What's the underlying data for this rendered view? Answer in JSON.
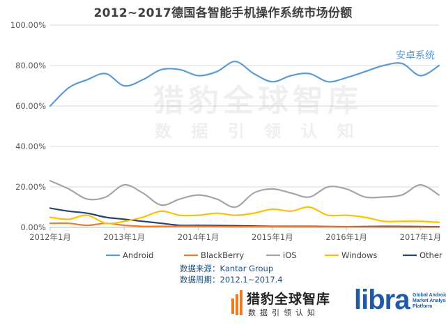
{
  "title": "2012~2017德国各智能手机操作系统市场份额",
  "annotation": "安卓系统",
  "watermark": {
    "main": "猎豹全球智库",
    "sub": "数 据 引 领 认 知"
  },
  "source_lines": [
    "数据来源：Kantar Group",
    "数据周期：2012.1~2017.4"
  ],
  "footer": {
    "brand": "猎豹全球智库",
    "brand_sub": "数据引领认知",
    "libra": "libra",
    "libra_tag": "Global Android Market Analysis Platform"
  },
  "chart_data": {
    "type": "line",
    "title": "2012~2017德国各智能手机操作系统市场份额",
    "x_tick_labels": [
      "2012年1月",
      "2013年1月",
      "2014年1月",
      "2015年1月",
      "2016年1月",
      "2017年1月"
    ],
    "y_tick_labels": [
      "0.00%",
      "20.00%",
      "40.00%",
      "60.00%",
      "80.00%",
      "100.00%"
    ],
    "ylim": [
      0,
      100
    ],
    "x_range_months": [
      "2012-01",
      "2017-04"
    ],
    "grid": "horizontal",
    "legend_position": "bottom",
    "series": [
      {
        "name": "Android",
        "color": "#5b9bd5",
        "points": [
          [
            "2012-01",
            60
          ],
          [
            "2012-04",
            69
          ],
          [
            "2012-07",
            73
          ],
          [
            "2012-10",
            76
          ],
          [
            "2013-01",
            70
          ],
          [
            "2013-04",
            73
          ],
          [
            "2013-07",
            78
          ],
          [
            "2013-10",
            78
          ],
          [
            "2014-01",
            75
          ],
          [
            "2014-04",
            77
          ],
          [
            "2014-07",
            82
          ],
          [
            "2014-10",
            76
          ],
          [
            "2015-01",
            72
          ],
          [
            "2015-04",
            75
          ],
          [
            "2015-07",
            76
          ],
          [
            "2015-10",
            72
          ],
          [
            "2016-01",
            74
          ],
          [
            "2016-04",
            77
          ],
          [
            "2016-07",
            80
          ],
          [
            "2016-10",
            81
          ],
          [
            "2017-01",
            75
          ],
          [
            "2017-04",
            80
          ]
        ]
      },
      {
        "name": "BlackBerry",
        "color": "#ed7d31",
        "points": [
          [
            "2012-01",
            2
          ],
          [
            "2012-04",
            2
          ],
          [
            "2012-07",
            1
          ],
          [
            "2012-10",
            2
          ],
          [
            "2013-01",
            1
          ],
          [
            "2013-04",
            0.5
          ],
          [
            "2013-07",
            0.5
          ],
          [
            "2014-01",
            0.5
          ],
          [
            "2014-07",
            0.3
          ],
          [
            "2015-01",
            0.3
          ],
          [
            "2016-01",
            0.2
          ],
          [
            "2017-04",
            0.1
          ]
        ]
      },
      {
        "name": "iOS",
        "color": "#a5a5a5",
        "points": [
          [
            "2012-01",
            23
          ],
          [
            "2012-04",
            19
          ],
          [
            "2012-07",
            14
          ],
          [
            "2012-10",
            15
          ],
          [
            "2013-01",
            21
          ],
          [
            "2013-04",
            17
          ],
          [
            "2013-07",
            11
          ],
          [
            "2013-10",
            14
          ],
          [
            "2014-01",
            16
          ],
          [
            "2014-04",
            14
          ],
          [
            "2014-07",
            10
          ],
          [
            "2014-10",
            17
          ],
          [
            "2015-01",
            19
          ],
          [
            "2015-04",
            17
          ],
          [
            "2015-07",
            15
          ],
          [
            "2015-10",
            20
          ],
          [
            "2016-01",
            19
          ],
          [
            "2016-04",
            15
          ],
          [
            "2016-07",
            15
          ],
          [
            "2016-10",
            16
          ],
          [
            "2017-01",
            21
          ],
          [
            "2017-04",
            16
          ]
        ]
      },
      {
        "name": "Windows",
        "color": "#ffc000",
        "points": [
          [
            "2012-01",
            5
          ],
          [
            "2012-04",
            4
          ],
          [
            "2012-07",
            6
          ],
          [
            "2012-10",
            2
          ],
          [
            "2013-01",
            3
          ],
          [
            "2013-04",
            5
          ],
          [
            "2013-07",
            8
          ],
          [
            "2013-10",
            6
          ],
          [
            "2014-01",
            6
          ],
          [
            "2014-04",
            7
          ],
          [
            "2014-07",
            6
          ],
          [
            "2014-10",
            7
          ],
          [
            "2015-01",
            9
          ],
          [
            "2015-04",
            8
          ],
          [
            "2015-07",
            10
          ],
          [
            "2015-10",
            6
          ],
          [
            "2016-01",
            6
          ],
          [
            "2016-04",
            5
          ],
          [
            "2016-07",
            3
          ],
          [
            "2016-10",
            3
          ],
          [
            "2017-01",
            3
          ],
          [
            "2017-04",
            2.5
          ]
        ]
      },
      {
        "name": "Other",
        "color": "#264478",
        "points": [
          [
            "2012-01",
            9.5
          ],
          [
            "2012-04",
            8
          ],
          [
            "2012-07",
            7
          ],
          [
            "2012-10",
            5
          ],
          [
            "2013-01",
            4
          ],
          [
            "2013-04",
            3
          ],
          [
            "2013-07",
            2
          ],
          [
            "2013-10",
            1
          ],
          [
            "2014-01",
            1
          ],
          [
            "2014-07",
            0.8
          ],
          [
            "2015-01",
            0.5
          ],
          [
            "2015-07",
            0.5
          ],
          [
            "2016-01",
            0.3
          ],
          [
            "2016-07",
            0.5
          ],
          [
            "2017-04",
            0.3
          ]
        ]
      }
    ]
  }
}
